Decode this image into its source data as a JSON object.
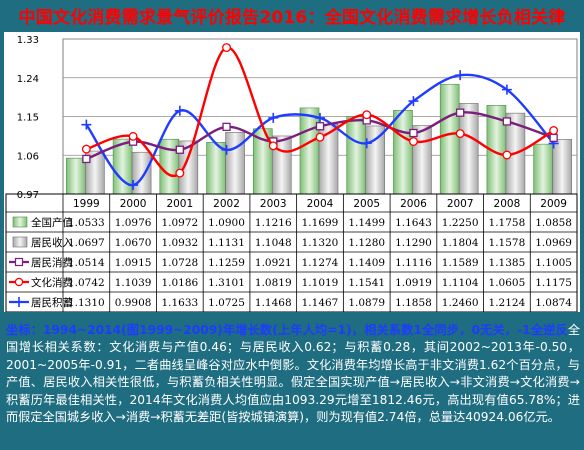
{
  "title": "中国文化消费需求景气评价报告2016：全国文化消费需求增长负相关律",
  "colors": {
    "background": "#1f6d80",
    "title": "#ff0000",
    "bar_national_output": "#a9d8a2",
    "bar_resident_income": "#d8d8d8",
    "line_resident_consumption": "#7a1f7a",
    "line_cultural_consumption": "#ff0000",
    "line_resident_savings": "#1f3cff"
  },
  "chart_data": {
    "type": "bar",
    "categories": [
      "1999",
      "2000",
      "2001",
      "2002",
      "2003",
      "2004",
      "2005",
      "2006",
      "2007",
      "2008",
      "2009"
    ],
    "ylim": [
      0.97,
      1.33
    ],
    "yticks": [
      "0.97",
      "1.06",
      "1.15",
      "1.24",
      "1.33"
    ],
    "series": [
      {
        "name": "全国产值",
        "kind": "bar",
        "display": [
          "1.0533",
          "1.0976",
          "1.0972",
          "1.0900",
          "1.1216",
          "1.1699",
          "1.1499",
          "1.1643",
          "1.2250",
          "1.1758",
          "1.0858"
        ],
        "values": [
          1.0533,
          1.0976,
          1.0972,
          1.09,
          1.1216,
          1.1699,
          1.1499,
          1.1643,
          1.225,
          1.1758,
          1.0858
        ]
      },
      {
        "name": "居民收入",
        "kind": "bar",
        "display": [
          "1.0697",
          "1.0670",
          "1.0932",
          "1.1131",
          "1.1048",
          "1.1320",
          "1.1280",
          "1.1290",
          "1.1804",
          "1.1578",
          "1.0969"
        ],
        "values": [
          1.0697,
          1.067,
          1.0932,
          1.1131,
          1.1048,
          1.132,
          1.128,
          1.129,
          1.1804,
          1.1578,
          1.0969
        ]
      },
      {
        "name": "居民消费",
        "kind": "line",
        "marker": "square",
        "display": [
          "1.0514",
          "1.0915",
          "1.0728",
          "1.1259",
          "1.0921",
          "1.1274",
          "1.1409",
          "1.1116",
          "1.1589",
          "1.1385",
          "1.1005"
        ],
        "values": [
          1.0514,
          1.0915,
          1.0728,
          1.1259,
          1.0921,
          1.1274,
          1.1409,
          1.1116,
          1.1589,
          1.1385,
          1.1005
        ]
      },
      {
        "name": "文化消费",
        "kind": "line",
        "marker": "circle",
        "display": [
          "1.0742",
          "1.1039",
          "1.0186",
          "1.3101",
          "1.0819",
          "1.1019",
          "1.1541",
          "1.0919",
          "1.1104",
          "1.0605",
          "1.1175"
        ],
        "values": [
          1.0742,
          1.1039,
          1.0186,
          1.3101,
          1.0819,
          1.1019,
          1.1541,
          1.0919,
          1.1104,
          1.0605,
          1.1175
        ]
      },
      {
        "name": "居民积蓄",
        "kind": "line",
        "marker": "plus",
        "display": [
          "1.1310",
          "0.9908",
          "1.1633",
          "1.0725",
          "1.1468",
          "1.1467",
          "1.0879",
          "1.1858",
          "1.2460",
          "1.2124",
          "1.0874"
        ],
        "values": [
          1.131,
          0.9908,
          1.1633,
          1.0725,
          1.1468,
          1.1467,
          1.0879,
          1.1858,
          1.246,
          1.2124,
          1.0874
        ]
      }
    ]
  },
  "footnote": {
    "highlight": "坐标：1994~2014(图1999~2009)年增长数(上年人均=1)，相关系数1全同步，0无关，-1全逆反",
    "body": "全国增长相关系数：文化消费与产值0.46；与居民收入0.62；与积蓄0.28，其间2002~2013年-0.50，2001~2005年-0.91，二者曲线呈峰谷对应水中倒影。文化消费年均增长高于非文消费1.62个百分点，与产值、居民收入相关性很低，与积蓄负相关性明显。假定全国实现产值→居民收入→非文消费→文化消费→积蓄历年最佳相关性，2014年文化消费人均值应由1093.29元增至1812.46元，高出现有值65.78%；进而假定全国城乡收入→消费→积蓄无差距(皆按城镇演算)，则为现有值2.74倍，总量达40924.06亿元。"
  }
}
